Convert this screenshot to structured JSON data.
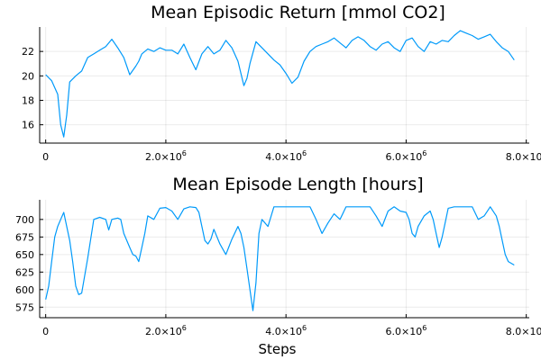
{
  "chart_data": [
    {
      "type": "line",
      "title": "Mean Episodic Return [mmol CO2]",
      "xlabel": "",
      "ylabel": "",
      "xlim": [
        -100000,
        8050000
      ],
      "ylim": [
        14.5,
        24.0
      ],
      "grid": true,
      "legend": "none",
      "color": "#009AFA",
      "xticks": [
        {
          "value": 0,
          "mant": "0",
          "exp": ""
        },
        {
          "value": 2000000,
          "mant": "2.0×10",
          "exp": "6"
        },
        {
          "value": 4000000,
          "mant": "4.0×10",
          "exp": "6"
        },
        {
          "value": 6000000,
          "mant": "6.0×10",
          "exp": "6"
        },
        {
          "value": 8000000,
          "mant": "8.0×10",
          "exp": "6"
        }
      ],
      "yticks": [
        {
          "value": 16,
          "label": "16"
        },
        {
          "value": 18,
          "label": "18"
        },
        {
          "value": 20,
          "label": "20"
        },
        {
          "value": 22,
          "label": "22"
        }
      ],
      "series": [
        {
          "x": [
            0,
            100000,
            200000,
            250000,
            300000,
            350000,
            400000,
            500000,
            600000,
            700000,
            800000,
            900000,
            1000000,
            1100000,
            1200000,
            1300000,
            1400000,
            1500000,
            1550000,
            1600000,
            1700000,
            1800000,
            1900000,
            2000000,
            2100000,
            2200000,
            2300000,
            2400000,
            2500000,
            2600000,
            2700000,
            2800000,
            2900000,
            3000000,
            3100000,
            3200000,
            3300000,
            3350000,
            3400000,
            3500000,
            3600000,
            3700000,
            3800000,
            3900000,
            4000000,
            4100000,
            4200000,
            4300000,
            4400000,
            4500000,
            4600000,
            4700000,
            4800000,
            4900000,
            5000000,
            5100000,
            5200000,
            5300000,
            5400000,
            5500000,
            5600000,
            5700000,
            5800000,
            5900000,
            6000000,
            6100000,
            6200000,
            6300000,
            6400000,
            6500000,
            6600000,
            6700000,
            6800000,
            6900000,
            7000000,
            7100000,
            7200000,
            7300000,
            7400000,
            7500000,
            7600000,
            7700000,
            7800000
          ],
          "y": [
            20.1,
            19.6,
            18.5,
            16.0,
            15.0,
            16.8,
            19.5,
            20.0,
            20.4,
            21.5,
            21.8,
            22.1,
            22.4,
            23.0,
            22.3,
            21.5,
            20.1,
            20.8,
            21.2,
            21.8,
            22.2,
            22.0,
            22.3,
            22.1,
            22.1,
            21.8,
            22.6,
            21.5,
            20.5,
            21.8,
            22.4,
            21.8,
            22.1,
            22.9,
            22.3,
            21.2,
            19.2,
            19.8,
            21.0,
            22.8,
            22.3,
            21.8,
            21.3,
            20.9,
            20.2,
            19.4,
            19.9,
            21.2,
            22.0,
            22.4,
            22.6,
            22.8,
            23.1,
            22.7,
            22.3,
            22.9,
            23.2,
            22.9,
            22.4,
            22.1,
            22.6,
            22.8,
            22.3,
            22.0,
            22.9,
            23.1,
            22.4,
            22.0,
            22.8,
            22.6,
            22.9,
            22.8,
            23.3,
            23.7,
            23.5,
            23.3,
            23.0,
            23.2,
            23.4,
            22.8,
            22.3,
            22.0,
            21.3
          ]
        }
      ]
    },
    {
      "type": "line",
      "title": "Mean Episode Length [hours]",
      "xlabel": "Steps",
      "ylabel": "",
      "xlim": [
        -100000,
        8050000
      ],
      "ylim": [
        560,
        728
      ],
      "grid": true,
      "legend": "none",
      "color": "#009AFA",
      "xticks": [
        {
          "value": 0,
          "mant": "0",
          "exp": ""
        },
        {
          "value": 2000000,
          "mant": "2.0×10",
          "exp": "6"
        },
        {
          "value": 4000000,
          "mant": "4.0×10",
          "exp": "6"
        },
        {
          "value": 6000000,
          "mant": "6.0×10",
          "exp": "6"
        },
        {
          "value": 8000000,
          "mant": "8.0×10",
          "exp": "6"
        }
      ],
      "yticks": [
        {
          "value": 575,
          "label": "575"
        },
        {
          "value": 600,
          "label": "600"
        },
        {
          "value": 625,
          "label": "625"
        },
        {
          "value": 650,
          "label": "650"
        },
        {
          "value": 675,
          "label": "675"
        },
        {
          "value": 700,
          "label": "700"
        }
      ],
      "series": [
        {
          "x": [
            0,
            50000,
            100000,
            150000,
            200000,
            250000,
            300000,
            350000,
            400000,
            450000,
            500000,
            550000,
            600000,
            700000,
            800000,
            900000,
            1000000,
            1050000,
            1100000,
            1200000,
            1250000,
            1300000,
            1400000,
            1450000,
            1500000,
            1550000,
            1600000,
            1650000,
            1700000,
            1800000,
            1900000,
            2000000,
            2100000,
            2200000,
            2300000,
            2400000,
            2500000,
            2550000,
            2600000,
            2650000,
            2700000,
            2750000,
            2800000,
            2900000,
            3000000,
            3100000,
            3200000,
            3250000,
            3300000,
            3350000,
            3400000,
            3450000,
            3500000,
            3550000,
            3600000,
            3700000,
            3800000,
            3900000,
            4000000,
            4100000,
            4200000,
            4300000,
            4400000,
            4500000,
            4600000,
            4700000,
            4800000,
            4900000,
            5000000,
            5100000,
            5200000,
            5300000,
            5400000,
            5500000,
            5600000,
            5700000,
            5800000,
            5900000,
            6000000,
            6050000,
            6100000,
            6150000,
            6200000,
            6300000,
            6400000,
            6450000,
            6500000,
            6550000,
            6600000,
            6700000,
            6800000,
            6900000,
            7000000,
            7100000,
            7200000,
            7300000,
            7400000,
            7500000,
            7550000,
            7600000,
            7650000,
            7700000,
            7800000
          ],
          "y": [
            586,
            605,
            640,
            675,
            690,
            700,
            710,
            690,
            670,
            640,
            605,
            593,
            595,
            645,
            700,
            703,
            700,
            685,
            700,
            702,
            700,
            680,
            660,
            650,
            648,
            640,
            660,
            680,
            705,
            700,
            716,
            717,
            712,
            700,
            715,
            718,
            717,
            710,
            690,
            670,
            665,
            672,
            686,
            665,
            650,
            672,
            690,
            680,
            660,
            630,
            600,
            570,
            610,
            680,
            700,
            690,
            718,
            718,
            718,
            718,
            718,
            718,
            718,
            700,
            680,
            695,
            708,
            700,
            718,
            718,
            718,
            718,
            718,
            705,
            690,
            712,
            718,
            712,
            710,
            700,
            680,
            675,
            690,
            705,
            712,
            700,
            680,
            660,
            675,
            716,
            718,
            718,
            718,
            718,
            700,
            705,
            718,
            705,
            690,
            670,
            650,
            640,
            635
          ]
        }
      ]
    }
  ]
}
